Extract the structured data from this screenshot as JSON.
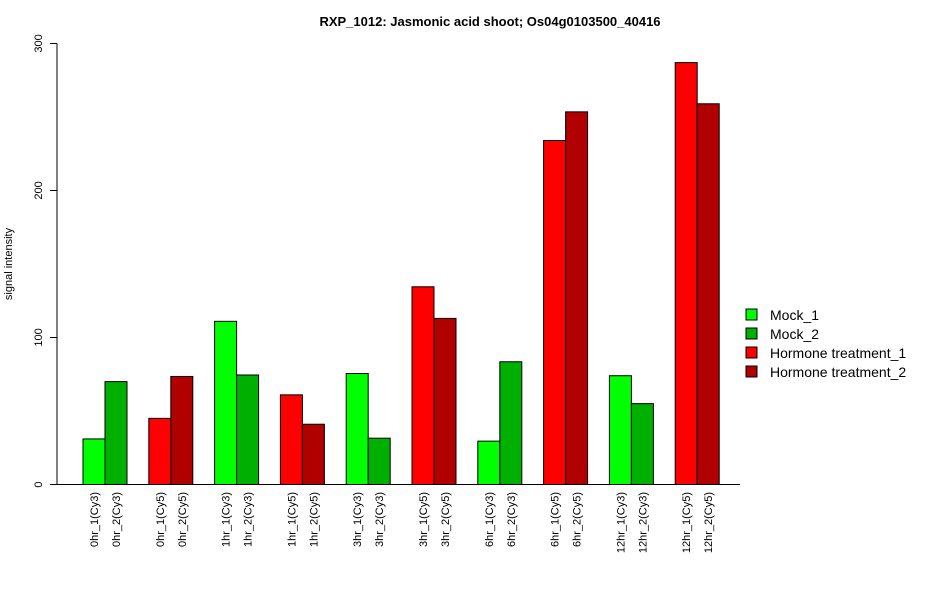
{
  "chart_data": {
    "type": "bar",
    "title": "RXP_1012: Jasmonic acid shoot; Os04g0103500_40416",
    "xlabel": "",
    "ylabel": "signal intensity",
    "ylim": [
      0,
      300
    ],
    "yticks": [
      0,
      100,
      200,
      300
    ],
    "grid": false,
    "legend_position": "right",
    "series": [
      {
        "name": "Mock_1",
        "color": "#00ff00"
      },
      {
        "name": "Mock_2",
        "color": "#00b000"
      },
      {
        "name": "Hormone treatment_1",
        "color": "#ff0000"
      },
      {
        "name": "Hormone treatment_2",
        "color": "#b00000"
      }
    ],
    "groups": [
      {
        "bars": [
          {
            "label": "0hr_1(Cy3)",
            "value": 31,
            "series": 0
          },
          {
            "label": "0hr_2(Cy3)",
            "value": 70,
            "series": 1
          }
        ]
      },
      {
        "bars": [
          {
            "label": "0hr_1(Cy5)",
            "value": 45,
            "series": 2
          },
          {
            "label": "0hr_2(Cy5)",
            "value": 73.5,
            "series": 3
          }
        ]
      },
      {
        "bars": [
          {
            "label": "1hr_1(Cy3)",
            "value": 111,
            "series": 0
          },
          {
            "label": "1hr_2(Cy3)",
            "value": 74.5,
            "series": 1
          }
        ]
      },
      {
        "bars": [
          {
            "label": "1hr_1(Cy5)",
            "value": 61,
            "series": 2
          },
          {
            "label": "1hr_2(Cy5)",
            "value": 41,
            "series": 3
          }
        ]
      },
      {
        "bars": [
          {
            "label": "3hr_1(Cy3)",
            "value": 75.5,
            "series": 0
          },
          {
            "label": "3hr_2(Cy3)",
            "value": 31.5,
            "series": 1
          }
        ]
      },
      {
        "bars": [
          {
            "label": "3hr_1(Cy5)",
            "value": 134.5,
            "series": 2
          },
          {
            "label": "3hr_2(Cy5)",
            "value": 113,
            "series": 3
          }
        ]
      },
      {
        "bars": [
          {
            "label": "6hr_1(Cy3)",
            "value": 29.5,
            "series": 0
          },
          {
            "label": "6hr_2(Cy3)",
            "value": 83.5,
            "series": 1
          }
        ]
      },
      {
        "bars": [
          {
            "label": "6hr_1(Cy5)",
            "value": 234,
            "series": 2
          },
          {
            "label": "6hr_2(Cy5)",
            "value": 253.5,
            "series": 3
          }
        ]
      },
      {
        "bars": [
          {
            "label": "12hr_1(Cy3)",
            "value": 74,
            "series": 0
          },
          {
            "label": "12hr_2(Cy3)",
            "value": 55,
            "series": 1
          }
        ]
      },
      {
        "bars": [
          {
            "label": "12hr_1(Cy5)",
            "value": 287,
            "series": 2
          },
          {
            "label": "12hr_2(Cy5)",
            "value": 259,
            "series": 3
          }
        ]
      }
    ]
  }
}
